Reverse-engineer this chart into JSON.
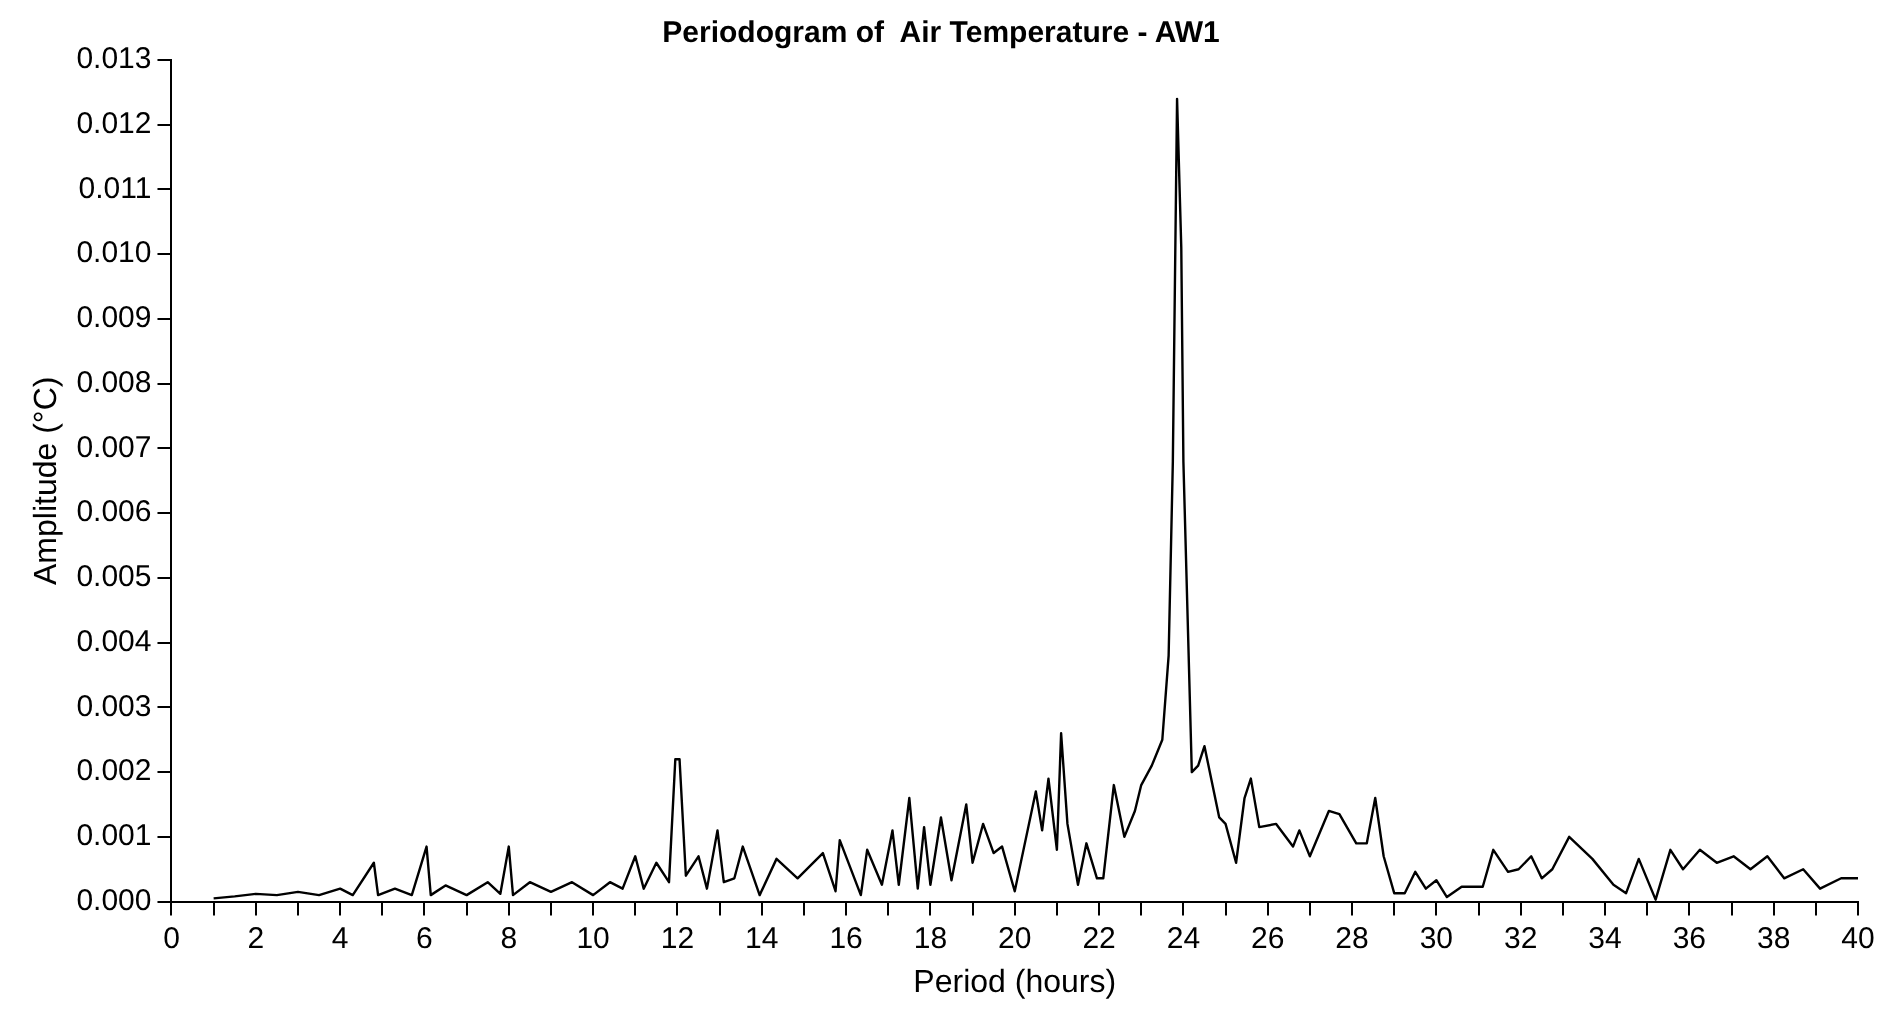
{
  "chart_data": {
    "type": "line",
    "title": "Periodogram of  Air Temperature - AW1",
    "xlabel": "Period (hours)",
    "ylabel": "Amplitude (°C)",
    "series": [
      {
        "color": "#000000",
        "x": [
          1.0,
          1.5,
          2.0,
          2.5,
          3.0,
          3.5,
          4.0,
          4.3,
          4.8,
          4.9,
          5.3,
          5.7,
          6.05,
          6.15,
          6.5,
          7.0,
          7.5,
          7.8,
          8.0,
          8.1,
          8.5,
          9.0,
          9.5,
          10.0,
          10.4,
          10.7,
          11.0,
          11.2,
          11.5,
          11.8,
          11.95,
          12.05,
          12.2,
          12.5,
          12.7,
          12.95,
          13.1,
          13.35,
          13.55,
          13.95,
          14.35,
          14.85,
          15.45,
          15.75,
          15.85,
          16.35,
          16.5,
          16.85,
          17.1,
          17.25,
          17.5,
          17.7,
          17.85,
          18.0,
          18.25,
          18.5,
          18.85,
          19.0,
          19.25,
          19.5,
          19.7,
          20.0,
          20.5,
          20.65,
          20.8,
          21.0,
          21.1,
          21.25,
          21.5,
          21.7,
          21.95,
          22.1,
          22.35,
          22.6,
          22.85,
          23.0,
          23.25,
          23.5,
          23.65,
          23.75,
          23.85,
          23.95,
          24.0,
          24.2,
          24.35,
          24.5,
          24.85,
          25.0,
          25.25,
          25.45,
          25.6,
          25.8,
          26.2,
          26.6,
          26.75,
          27.0,
          27.45,
          27.7,
          28.1,
          28.35,
          28.55,
          28.75,
          29.0,
          29.25,
          29.5,
          29.75,
          30.0,
          30.25,
          30.6,
          31.1,
          31.35,
          31.7,
          31.95,
          32.25,
          32.5,
          32.75,
          33.15,
          33.7,
          34.2,
          34.5,
          34.8,
          35.2,
          35.55,
          35.85,
          36.25,
          36.65,
          37.05,
          37.45,
          37.85,
          38.25,
          38.7,
          39.1,
          39.6,
          40.0
        ],
        "values": [
          5e-05,
          8e-05,
          0.00012,
          0.0001,
          0.00015,
          0.0001,
          0.0002,
          0.0001,
          0.0006,
          0.0001,
          0.0002,
          0.0001,
          0.00085,
          0.0001,
          0.00025,
          0.0001,
          0.0003,
          0.00012,
          0.00085,
          0.0001,
          0.0003,
          0.00015,
          0.0003,
          0.0001,
          0.0003,
          0.0002,
          0.0007,
          0.0002,
          0.0006,
          0.0003,
          0.0022,
          0.0022,
          0.0004,
          0.0007,
          0.0002,
          0.0011,
          0.0003,
          0.00036,
          0.00085,
          0.0001,
          0.00066,
          0.00036,
          0.00075,
          0.00016,
          0.00095,
          0.0001,
          0.0008,
          0.00026,
          0.0011,
          0.00026,
          0.0016,
          0.0002,
          0.00115,
          0.00026,
          0.0013,
          0.00033,
          0.0015,
          0.0006,
          0.0012,
          0.00075,
          0.00085,
          0.00016,
          0.0017,
          0.0011,
          0.0019,
          0.0008,
          0.0026,
          0.0012,
          0.00026,
          0.0009,
          0.00036,
          0.00036,
          0.0018,
          0.001,
          0.0014,
          0.0018,
          0.0021,
          0.0025,
          0.0038,
          0.0068,
          0.0124,
          0.0101,
          0.0068,
          0.002,
          0.0021,
          0.0024,
          0.0013,
          0.0012,
          0.0006,
          0.0016,
          0.0019,
          0.00115,
          0.0012,
          0.00085,
          0.0011,
          0.0007,
          0.0014,
          0.00135,
          0.0009,
          0.0009,
          0.0016,
          0.0007,
          0.00013,
          0.00013,
          0.00046,
          0.0002,
          0.00033,
          7e-05,
          0.00023,
          0.00023,
          0.0008,
          0.00046,
          0.0005,
          0.0007,
          0.00036,
          0.0005,
          0.001,
          0.00066,
          0.00026,
          0.00013,
          0.00066,
          3e-05,
          0.0008,
          0.0005,
          0.0008,
          0.0006,
          0.0007,
          0.0005,
          0.0007,
          0.00036,
          0.0005,
          0.0002,
          0.00036,
          0.00036
        ]
      }
    ],
    "xlim": [
      0,
      40
    ],
    "ylim": [
      0,
      0.013
    ],
    "xticks": [
      0,
      {
        "value": 1,
        "label": null
      },
      2,
      {
        "value": 3,
        "label": null
      },
      4,
      {
        "value": 5,
        "label": null
      },
      6,
      {
        "value": 7,
        "label": null
      },
      8,
      {
        "value": 9,
        "label": null
      },
      10,
      {
        "value": 11,
        "label": null
      },
      12,
      {
        "value": 13,
        "label": null
      },
      14,
      {
        "value": 15,
        "label": null
      },
      16,
      {
        "value": 17,
        "label": null
      },
      18,
      {
        "value": 19,
        "label": null
      },
      20,
      {
        "value": 21,
        "label": null
      },
      22,
      {
        "value": 23,
        "label": null
      },
      24,
      {
        "value": 25,
        "label": null
      },
      26,
      {
        "value": 27,
        "label": null
      },
      28,
      {
        "value": 29,
        "label": null
      },
      30,
      {
        "value": 31,
        "label": null
      },
      32,
      {
        "value": 33,
        "label": null
      },
      34,
      {
        "value": 35,
        "label": null
      },
      36,
      {
        "value": 37,
        "label": null
      },
      38,
      {
        "value": 39,
        "label": null
      },
      40
    ],
    "yticks": [
      {
        "value": 0,
        "label": "0.000"
      },
      {
        "value": 0.001,
        "label": "0.001"
      },
      {
        "value": 0.002,
        "label": "0.002"
      },
      {
        "value": 0.003,
        "label": "0.003"
      },
      {
        "value": 0.004,
        "label": "0.004"
      },
      {
        "value": 0.005,
        "label": "0.005"
      },
      {
        "value": 0.006,
        "label": "0.006"
      },
      {
        "value": 0.007,
        "label": "0.007"
      },
      {
        "value": 0.008,
        "label": "0.008"
      },
      {
        "value": 0.009,
        "label": "0.009"
      },
      {
        "value": 0.01,
        "label": "0.010"
      },
      {
        "value": 0.011,
        "label": "0.011"
      },
      {
        "value": 0.012,
        "label": "0.012"
      },
      {
        "value": 0.013,
        "label": "0.013"
      }
    ],
    "grid": false,
    "legend": false,
    "marker": "none",
    "line_style": "solid"
  }
}
